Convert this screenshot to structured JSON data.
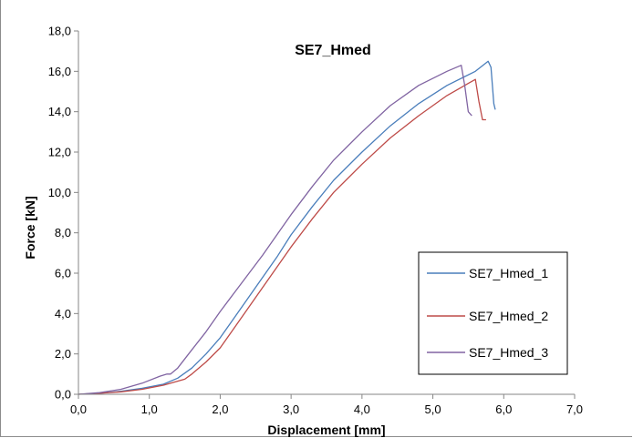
{
  "chart_data": {
    "type": "line",
    "title": "SE7_Hmed",
    "xlabel": "Displacement [mm]",
    "ylabel": "Force [kN]",
    "xlim": [
      0,
      7
    ],
    "ylim": [
      0,
      18
    ],
    "xticks": [
      "0,0",
      "1,0",
      "2,0",
      "3,0",
      "4,0",
      "5,0",
      "6,0",
      "7,0"
    ],
    "yticks": [
      "0,0",
      "2,0",
      "4,0",
      "6,0",
      "8,0",
      "10,0",
      "12,0",
      "14,0",
      "16,0",
      "18,0"
    ],
    "grid": false,
    "legend_position": "right",
    "series": [
      {
        "name": "SE7_Hmed_1",
        "color": "#4a7ebb",
        "x": [
          0.0,
          0.3,
          0.6,
          0.9,
          1.2,
          1.4,
          1.6,
          1.8,
          2.0,
          2.2,
          2.5,
          2.8,
          3.0,
          3.3,
          3.6,
          4.0,
          4.4,
          4.8,
          5.2,
          5.6,
          5.78,
          5.82,
          5.86,
          5.88
        ],
        "y": [
          0.0,
          0.05,
          0.15,
          0.3,
          0.5,
          0.8,
          1.3,
          2.0,
          2.8,
          3.8,
          5.3,
          6.8,
          7.9,
          9.3,
          10.6,
          12.0,
          13.3,
          14.4,
          15.3,
          16.0,
          16.5,
          16.2,
          14.4,
          14.1
        ]
      },
      {
        "name": "SE7_Hmed_2",
        "color": "#be4b48",
        "x": [
          0.0,
          0.3,
          0.6,
          0.9,
          1.2,
          1.5,
          1.6,
          1.8,
          2.0,
          2.2,
          2.5,
          2.8,
          3.0,
          3.3,
          3.6,
          4.0,
          4.4,
          4.8,
          5.2,
          5.5,
          5.6,
          5.65,
          5.7,
          5.75
        ],
        "y": [
          0.0,
          0.05,
          0.12,
          0.25,
          0.45,
          0.75,
          1.0,
          1.6,
          2.3,
          3.3,
          4.8,
          6.3,
          7.3,
          8.7,
          10.0,
          11.4,
          12.7,
          13.8,
          14.8,
          15.4,
          15.6,
          14.5,
          13.6,
          13.6
        ]
      },
      {
        "name": "SE7_Hmed_3",
        "color": "#8064a2",
        "x": [
          0.0,
          0.3,
          0.6,
          0.9,
          1.15,
          1.25,
          1.3,
          1.4,
          1.6,
          1.8,
          2.0,
          2.3,
          2.6,
          3.0,
          3.3,
          3.6,
          4.0,
          4.4,
          4.8,
          5.2,
          5.4,
          5.45,
          5.5,
          5.55
        ],
        "y": [
          0.0,
          0.08,
          0.25,
          0.55,
          0.9,
          1.0,
          1.0,
          1.3,
          2.2,
          3.1,
          4.1,
          5.5,
          6.9,
          8.9,
          10.3,
          11.6,
          13.0,
          14.3,
          15.3,
          16.0,
          16.3,
          15.3,
          14.0,
          13.8
        ]
      }
    ]
  }
}
